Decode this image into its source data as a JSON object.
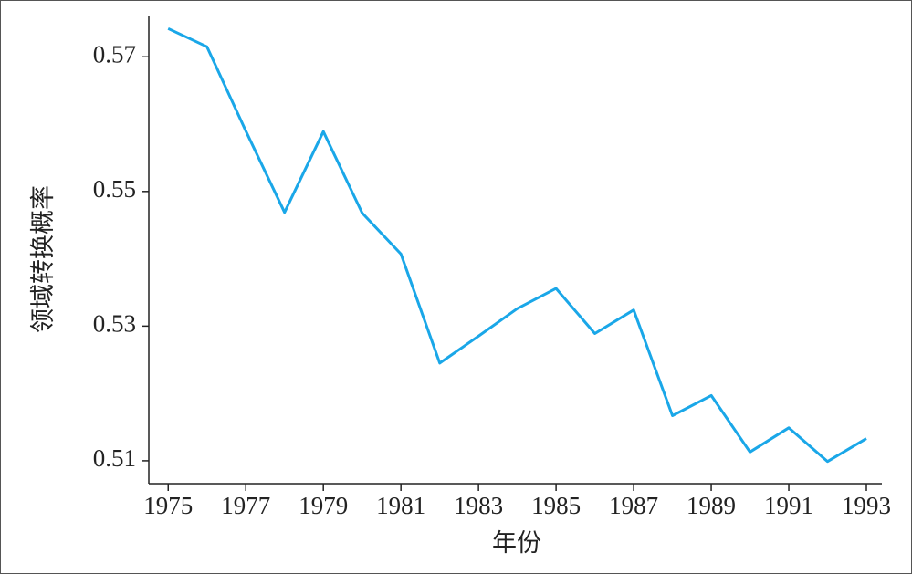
{
  "chart_data": {
    "type": "line",
    "x_label": "年份",
    "y_label": "领域转换概率",
    "x": [
      1975,
      1976,
      1977,
      1978,
      1979,
      1980,
      1981,
      1982,
      1983,
      1984,
      1985,
      1986,
      1987,
      1988,
      1989,
      1990,
      1991,
      1992,
      1993
    ],
    "series": [
      {
        "name": "领域转换概率",
        "color": "#1aa7e8",
        "values": [
          0.5742,
          0.5715,
          0.559,
          0.5469,
          0.5589,
          0.5468,
          0.5407,
          0.5245,
          0.5285,
          0.5326,
          0.5356,
          0.5289,
          0.5324,
          0.5167,
          0.5197,
          0.5113,
          0.5149,
          0.5099,
          0.5133
        ]
      }
    ],
    "xlim": [
      1974.5,
      1993.4
    ],
    "ylim": [
      0.5066,
      0.576
    ],
    "xticks": [
      1975,
      1977,
      1979,
      1981,
      1983,
      1985,
      1987,
      1989,
      1991,
      1993
    ],
    "yticks": [
      0.51,
      0.53,
      0.55,
      0.57
    ]
  }
}
